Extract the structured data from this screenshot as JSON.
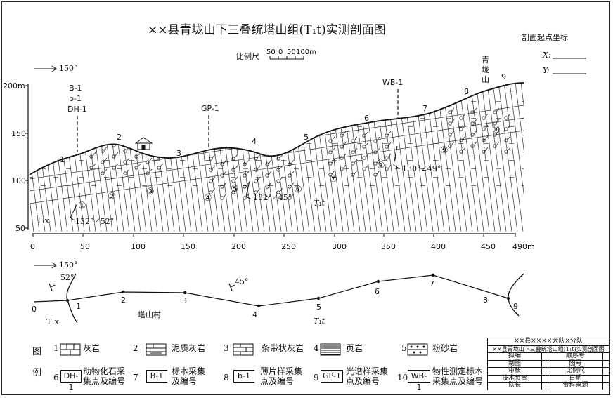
{
  "title": "××县青垅山下三叠统塔山组(T₁t)实测剖面图",
  "scale": {
    "label": "比例尺",
    "ticks": [
      "50",
      "0",
      "50",
      "100m"
    ]
  },
  "start_coords": {
    "title": "剖面起点坐标",
    "x_label": "X:",
    "y_label": "Y:"
  },
  "profile": {
    "direction": "150°",
    "elevation_ticks": [
      "200m",
      "150",
      "100",
      "50"
    ],
    "distance_ticks": [
      "0",
      "50",
      "100",
      "150",
      "200",
      "250",
      "300",
      "350",
      "400",
      "450",
      "490m"
    ],
    "point_numbers": [
      "1",
      "2",
      "3",
      "4",
      "5",
      "6",
      "7",
      "8",
      "9"
    ],
    "layer_numbers": [
      "①",
      "②",
      "③",
      "④",
      "⑤",
      "⑥",
      "⑦",
      "⑧",
      "⑨",
      "⑩"
    ],
    "stratum_left": "T₁x",
    "stratum_main": "T₁t",
    "attitudes": [
      "132°∠52°",
      "132°∠45°",
      "130°∠49°"
    ],
    "samples": {
      "s1": [
        "B-1",
        "b-1",
        "DH-1"
      ],
      "gp": "GP-1",
      "wb": "WB-1"
    },
    "mountain": "青垅山",
    "village": "塔山村"
  },
  "plan": {
    "direction": "150°",
    "dip_left": "52°",
    "dip_mid": "45°",
    "point_numbers": [
      "0",
      "1",
      "2",
      "3",
      "4",
      "5",
      "6",
      "7",
      "8",
      "9"
    ],
    "stratum_left": "T₁x",
    "stratum_main": "T₁t"
  },
  "legend": {
    "heading_1": "图",
    "heading_2": "例",
    "items": [
      {
        "num": "1",
        "label": "灰岩"
      },
      {
        "num": "2",
        "label": "泥质灰岩"
      },
      {
        "num": "3",
        "label": "条带状灰岩"
      },
      {
        "num": "4",
        "label": "页岩"
      },
      {
        "num": "5",
        "label": "粉砂岩"
      },
      {
        "num": "6",
        "code": "DH-1",
        "label1": "动物化石采",
        "label2": "集点及编号"
      },
      {
        "num": "7",
        "code": "B-1",
        "label1": "标本采集",
        "label2": "及编号"
      },
      {
        "num": "8",
        "code": "b-1",
        "label1": "薄片样采集",
        "label2": "点及编号"
      },
      {
        "num": "9",
        "code": "GP-1",
        "label1": "光谱样采集",
        "label2": "点及编号"
      },
      {
        "num": "10",
        "code": "WB-1",
        "label1": "物性测定标本",
        "label2": "采集点及编号"
      }
    ]
  },
  "title_block": {
    "row1": "××县××××大队×分队",
    "row2": "××县青垅山下三叠统塔山组(T₁t)实测剖面图",
    "rows": [
      [
        "拟编",
        "",
        "顺序号",
        ""
      ],
      [
        "制图",
        "",
        "图号",
        ""
      ],
      [
        "审核",
        "",
        "比例尺",
        ""
      ],
      [
        "技术负责",
        "",
        "日期",
        ""
      ],
      [
        "队长",
        "",
        "资料来源",
        ""
      ]
    ]
  }
}
